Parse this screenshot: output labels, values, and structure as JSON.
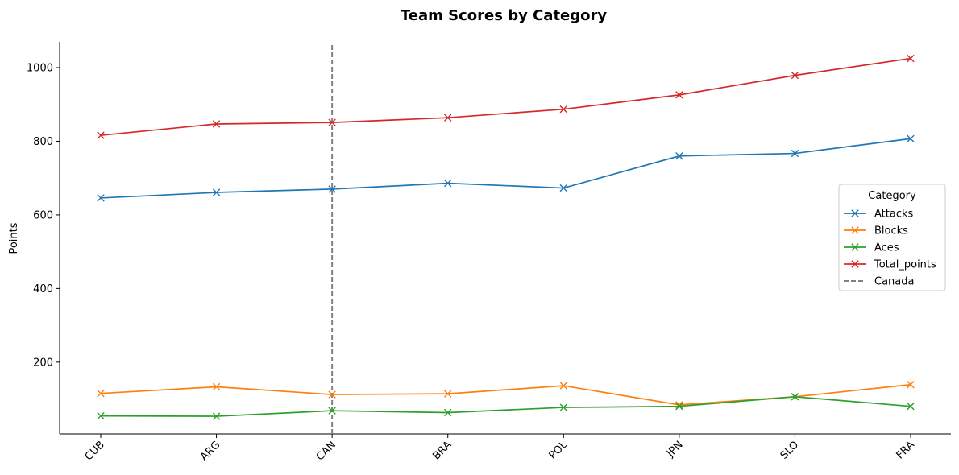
{
  "chart_data": {
    "type": "line",
    "title": "Team Scores by Category",
    "xlabel": "",
    "ylabel": "Points",
    "categories": [
      "CUB",
      "ARG",
      "CAN",
      "BRA",
      "POL",
      "JPN",
      "SLO",
      "FRA"
    ],
    "ylim": [
      5,
      1070
    ],
    "yticks": [
      200,
      400,
      600,
      800,
      1000
    ],
    "grid": false,
    "legend": {
      "title": "Category",
      "placement": "center-right"
    },
    "series": [
      {
        "name": "Attacks",
        "color": "#1f77b4",
        "marker": "x",
        "values": [
          646,
          661,
          670,
          686,
          673,
          760,
          767,
          807
        ]
      },
      {
        "name": "Blocks",
        "color": "#ff7f0e",
        "marker": "x",
        "values": [
          115,
          133,
          112,
          114,
          136,
          84,
          106,
          139
        ]
      },
      {
        "name": "Aces",
        "color": "#2ca02c",
        "marker": "x",
        "values": [
          54,
          53,
          68,
          63,
          77,
          80,
          106,
          80
        ]
      },
      {
        "name": "Total_points",
        "color": "#d62728",
        "marker": "x",
        "values": [
          816,
          847,
          851,
          864,
          887,
          926,
          979,
          1025
        ]
      }
    ],
    "reference_line": {
      "name": "Canada",
      "category": "CAN",
      "color": "#808080",
      "style": "dashed"
    }
  }
}
